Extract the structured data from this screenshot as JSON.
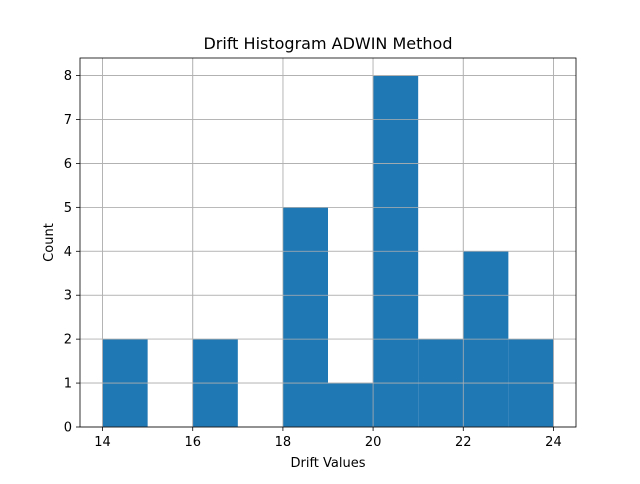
{
  "chart_data": {
    "type": "bar",
    "subtype": "histogram",
    "title": "Drift Histogram ADWIN Method",
    "xlabel": "Drift Values",
    "ylabel": "Count",
    "xlim": [
      13.5,
      24.5
    ],
    "ylim": [
      0,
      8.4
    ],
    "x_ticks": [
      14,
      16,
      18,
      20,
      22,
      24
    ],
    "y_ticks": [
      0,
      1,
      2,
      3,
      4,
      5,
      6,
      7,
      8
    ],
    "grid": true,
    "legend": "none",
    "bar_color": "#1f77b4",
    "bins": [
      {
        "start": 14,
        "end": 15,
        "count": 2
      },
      {
        "start": 15,
        "end": 16,
        "count": 0
      },
      {
        "start": 16,
        "end": 17,
        "count": 2
      },
      {
        "start": 17,
        "end": 18,
        "count": 0
      },
      {
        "start": 18,
        "end": 19,
        "count": 5
      },
      {
        "start": 19,
        "end": 20,
        "count": 1
      },
      {
        "start": 20,
        "end": 21,
        "count": 8
      },
      {
        "start": 21,
        "end": 22,
        "count": 2
      },
      {
        "start": 22,
        "end": 23,
        "count": 4
      },
      {
        "start": 23,
        "end": 24,
        "count": 2
      }
    ]
  }
}
